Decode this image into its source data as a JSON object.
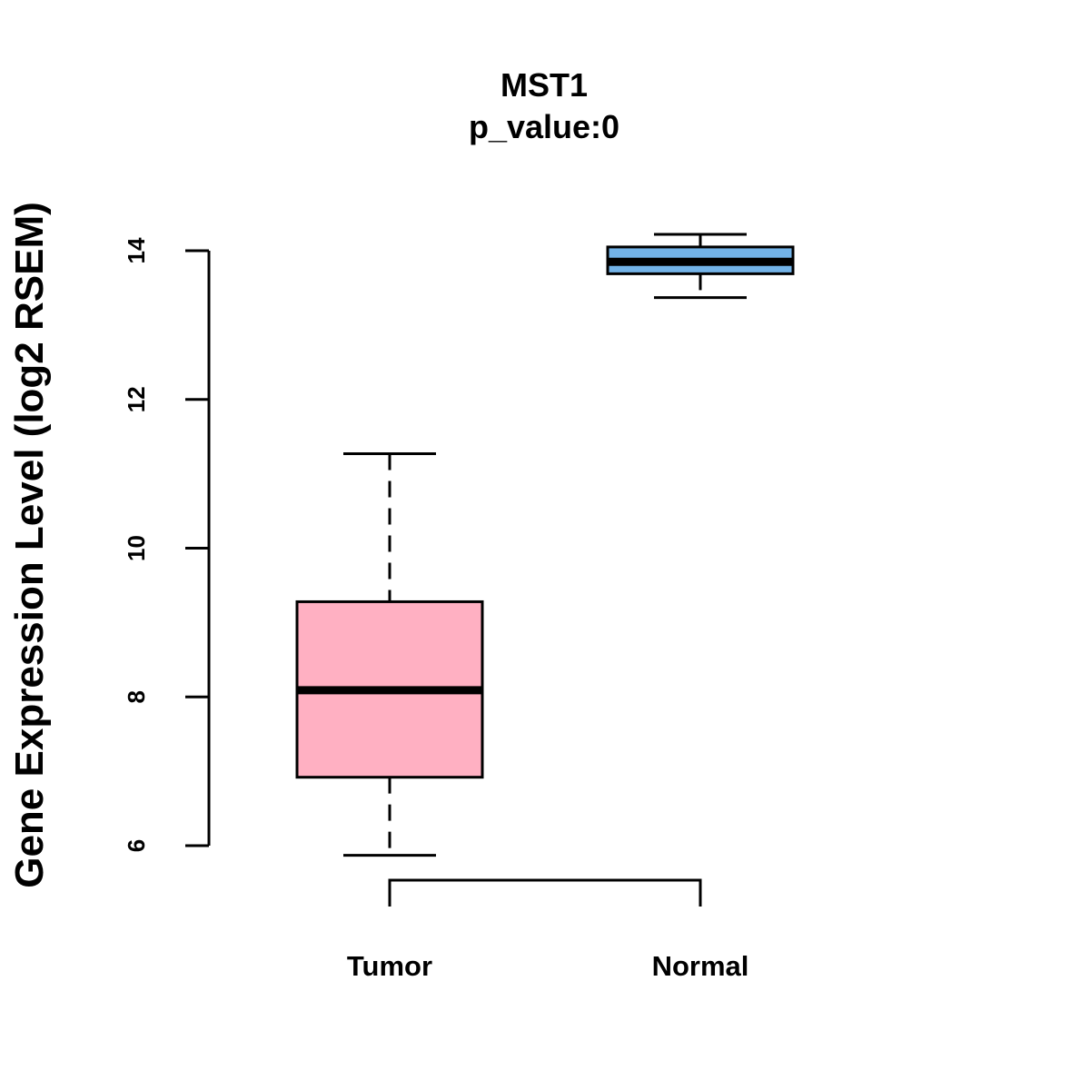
{
  "chart_data": {
    "type": "boxplot",
    "title": "MST1",
    "subtitle": "p_value:0",
    "xlabel": "",
    "ylabel": "Gene Expression Level (log2 RSEM)",
    "ylim": [
      5.6,
      14.4
    ],
    "yticks": [
      6,
      8,
      10,
      12,
      14
    ],
    "categories": [
      "Tumor",
      "Normal"
    ],
    "series": [
      {
        "name": "Tumor",
        "color": "#FFB0C2",
        "whisker_low": 5.87,
        "q1": 6.92,
        "median": 8.09,
        "q3": 9.28,
        "whisker_high": 11.27
      },
      {
        "name": "Normal",
        "color": "#73B3E8",
        "whisker_low": 13.37,
        "q1": 13.69,
        "median": 13.85,
        "q3": 14.05,
        "whisker_high": 14.22
      }
    ],
    "comparison_bracket": [
      "Tumor",
      "Normal"
    ]
  }
}
